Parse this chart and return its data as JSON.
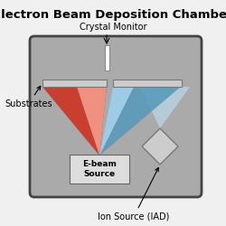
{
  "title": "Electron Beam Deposition Chamber",
  "label_crystal": "Crystal Monitor",
  "label_substrates": "Substrates",
  "label_ebeam": "E-beam\nSource",
  "label_ion": "Ion Source (IAD)",
  "fig_bg": "#f0f0f0",
  "chamber_color": "#aaaaaa",
  "chamber_border": "#444444",
  "chamber_border_lw": 2.0,
  "substrate_color": "#cccccc",
  "substrate_border": "#777777",
  "ebeam_box_color": "#dddddd",
  "ebeam_box_border": "#666666",
  "crystal_bar_color": "white",
  "crystal_bar_border": "#888888",
  "ion_diamond_color": "#cccccc",
  "ion_diamond_border": "#777777",
  "title_fontsize": 9.5,
  "label_fontsize": 7.0,
  "small_fontsize": 6.5,
  "red_cone_dark": "#cc3322",
  "red_cone_light": "#f5a090",
  "blue_cone_dark": "#5599bb",
  "blue_cone_light": "#aad4ee",
  "ion_beam_color": "#bbddf0"
}
